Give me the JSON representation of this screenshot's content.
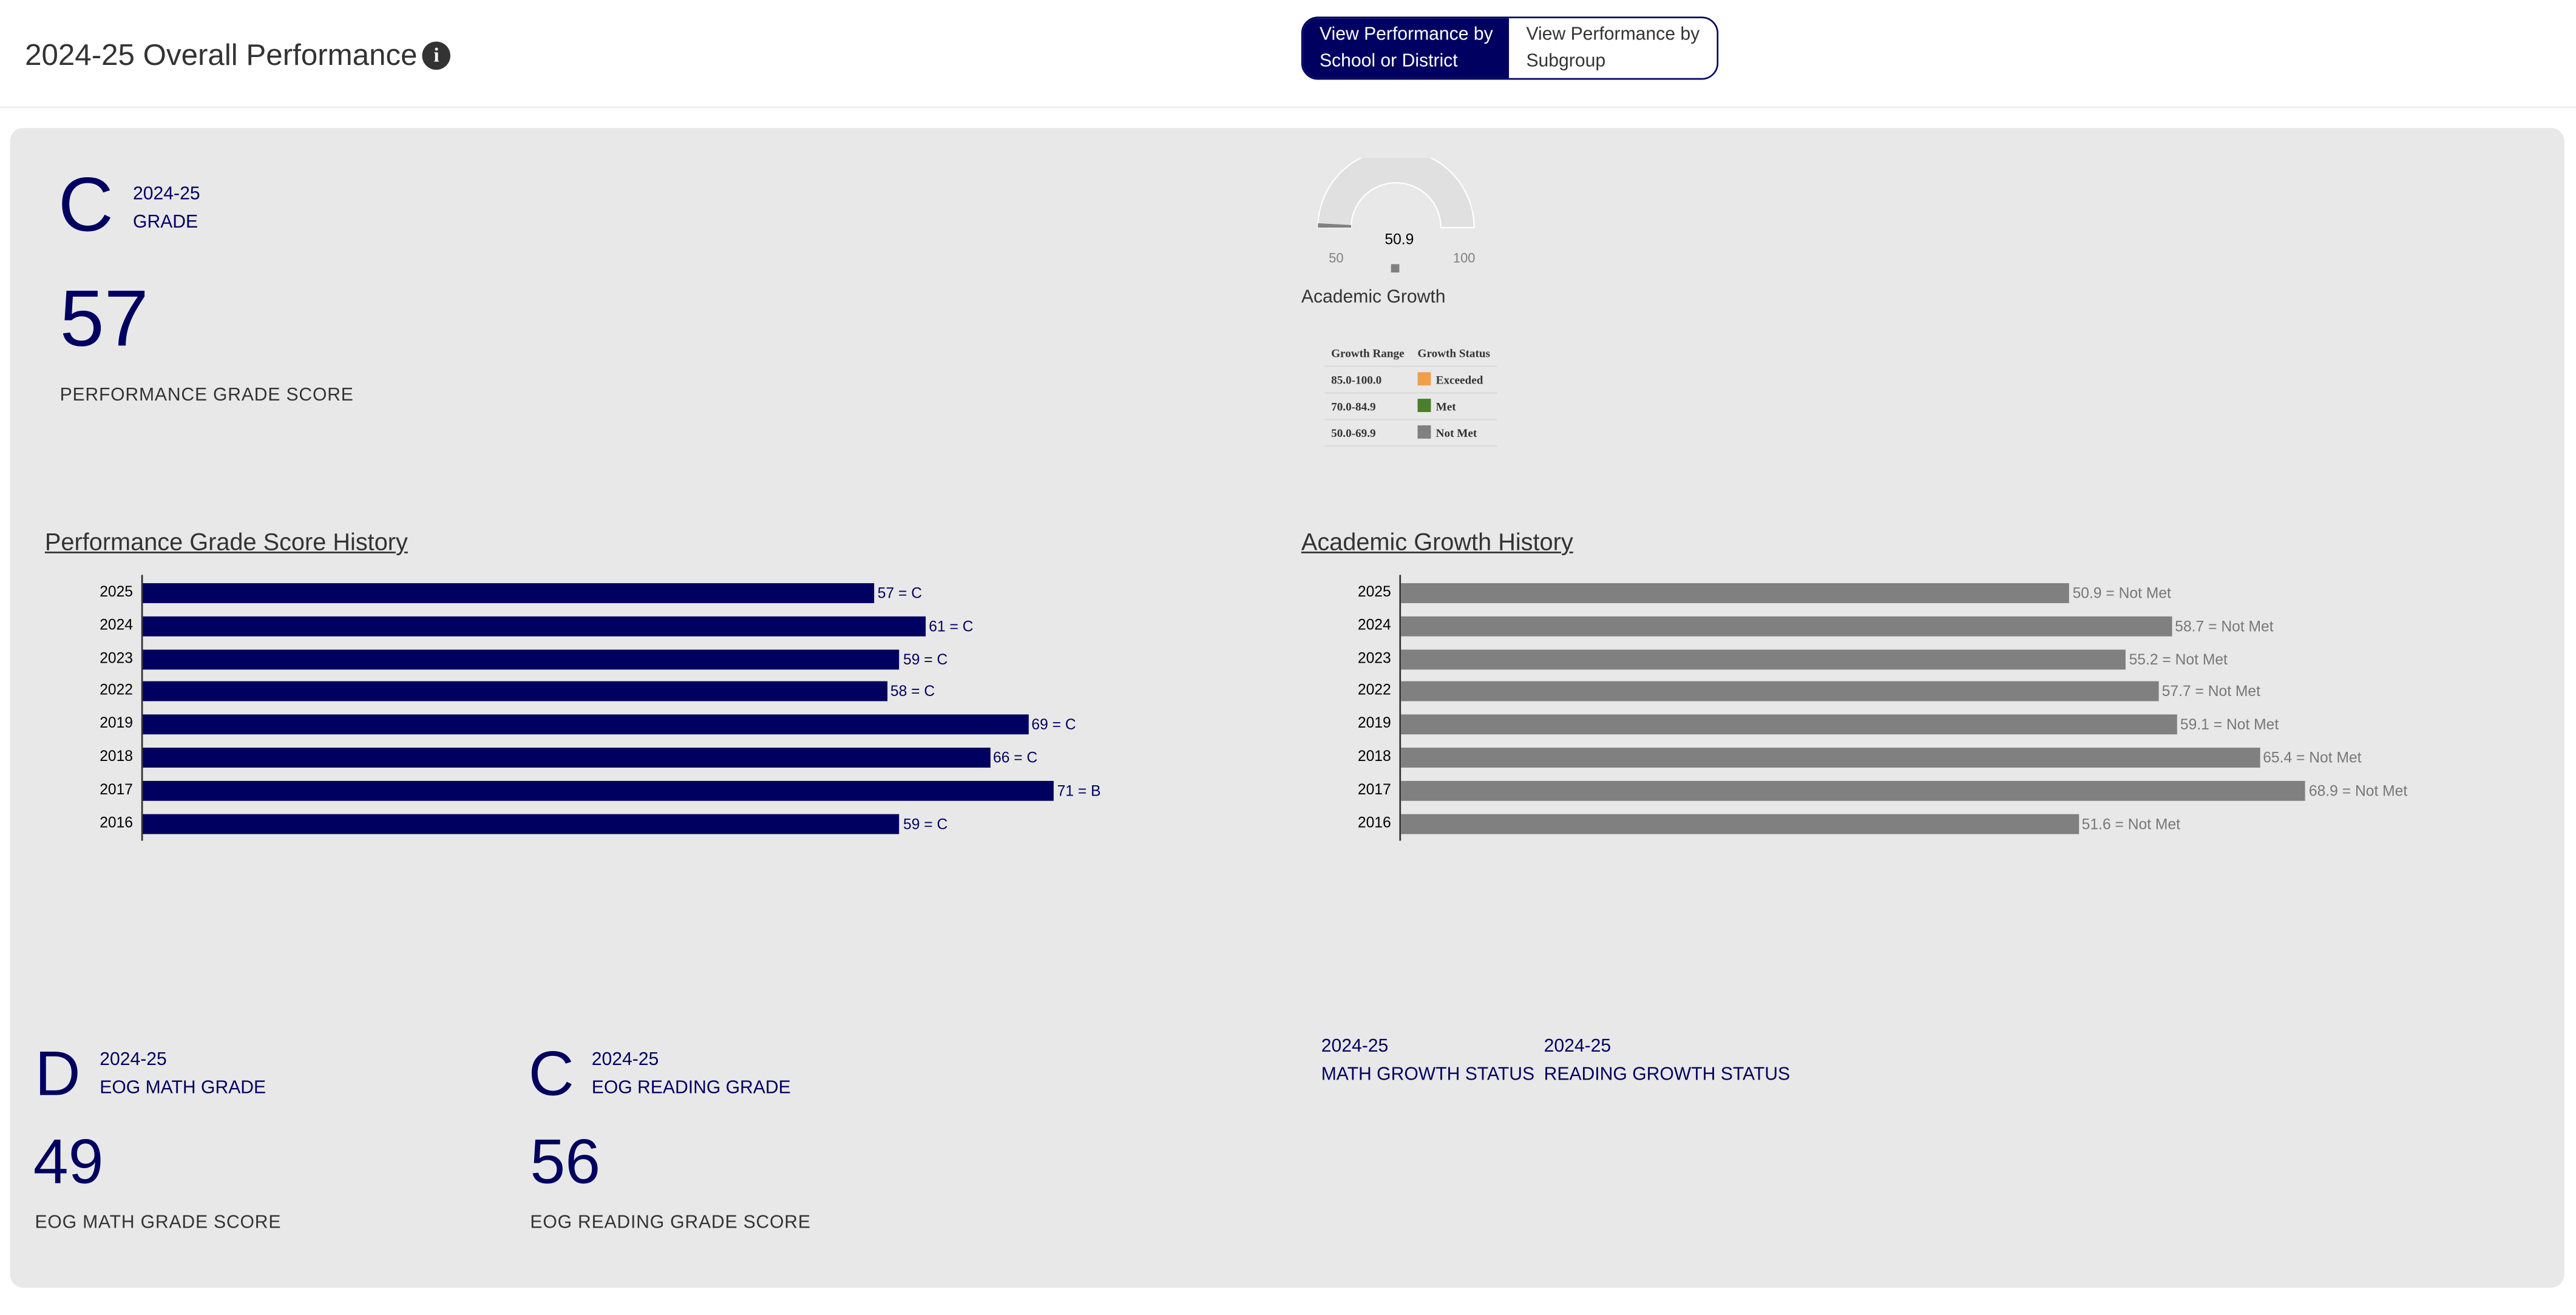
{
  "header": {
    "title": "2024-25 Overall Performance",
    "info_icon": "info-circle-icon",
    "toggle": {
      "school_label_1": "View Performance by",
      "school_label_2": "School or District",
      "subgroup_label_1": "View Performance by",
      "subgroup_label_2": "Subgroup"
    }
  },
  "colors": {
    "navy": "#000060",
    "gray_bar": "#808080",
    "exceeded": "#F0A04B",
    "met": "#4A7F2B",
    "not_met": "#808080"
  },
  "overall": {
    "grade": "C",
    "year": "2024-25",
    "grade_label": "GRADE",
    "score": "57",
    "score_label": "PERFORMANCE GRADE SCORE"
  },
  "gauge": {
    "value": 50.9,
    "value_label": "50.9",
    "min": 50,
    "max": 100,
    "min_label": "50",
    "max_label": "100",
    "title": "Academic Growth"
  },
  "legend": {
    "headers": [
      "Growth Range",
      "Growth Status"
    ],
    "rows": [
      {
        "range": "85.0-100.0",
        "status": "Exceeded",
        "color": "#F0A04B"
      },
      {
        "range": "70.0-84.9",
        "status": "Met",
        "color": "#4A7F2B"
      },
      {
        "range": "50.0-69.9",
        "status": "Not Met",
        "color": "#808080"
      }
    ]
  },
  "chart_data": [
    {
      "type": "bar",
      "title": "Performance Grade Score History",
      "categories": [
        "2025",
        "2024",
        "2023",
        "2022",
        "2019",
        "2018",
        "2017",
        "2016"
      ],
      "values": [
        57,
        61,
        59,
        58,
        69,
        66,
        71,
        59
      ],
      "labels": [
        "57 = C",
        "61 = C",
        "59 = C",
        "58 = C",
        "69 = C",
        "66 = C",
        "71 = B",
        "59 = C"
      ],
      "color": "#000060"
    },
    {
      "type": "bar",
      "title": "Academic Growth History",
      "categories": [
        "2025",
        "2024",
        "2023",
        "2022",
        "2019",
        "2018",
        "2017",
        "2016"
      ],
      "values": [
        50.9,
        58.7,
        55.2,
        57.7,
        59.1,
        65.4,
        68.9,
        51.6
      ],
      "labels": [
        "50.9 = Not Met",
        "58.7 = Not Met",
        "55.2 = Not Met",
        "57.7 = Not Met",
        "59.1 = Not Met",
        "65.4 = Not Met",
        "68.9 = Not Met",
        "51.6 = Not Met"
      ],
      "color": "#808080"
    }
  ],
  "math": {
    "grade": "D",
    "year": "2024-25",
    "grade_label": "EOG MATH GRADE",
    "score": "49",
    "score_label": "EOG MATH GRADE SCORE"
  },
  "reading": {
    "grade": "C",
    "year": "2024-25",
    "grade_label": "EOG READING GRADE",
    "score": "56",
    "score_label": "EOG READING GRADE SCORE"
  },
  "growth_status": {
    "math_year": "2024-25",
    "math_label": "MATH GROWTH STATUS",
    "reading_year": "2024-25",
    "reading_label": "READING GROWTH STATUS"
  }
}
